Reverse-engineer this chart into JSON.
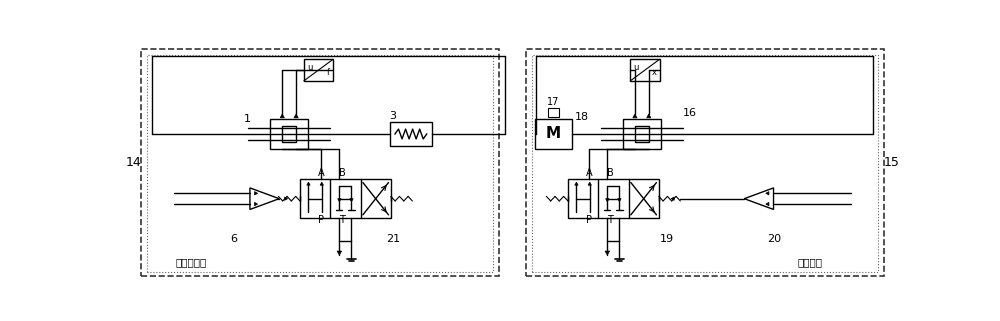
{
  "fig_width": 10.0,
  "fig_height": 3.21,
  "bg_color": "#ffffff",
  "labels": {
    "num_1": "1",
    "num_3": "3",
    "num_6": "6",
    "num_14": "14",
    "num_15": "15",
    "num_16": "16",
    "num_17": "17",
    "num_18": "18",
    "num_19": "19",
    "num_20": "20",
    "num_21": "21",
    "uf_top": "u",
    "uf_bot": "f",
    "ux_top": "u",
    "ux_bot": "x",
    "M": "M",
    "A": "A",
    "B": "B",
    "P": "P",
    "T": "T",
    "label_left": "载荷谱指令",
    "label_right": "位置指令"
  }
}
